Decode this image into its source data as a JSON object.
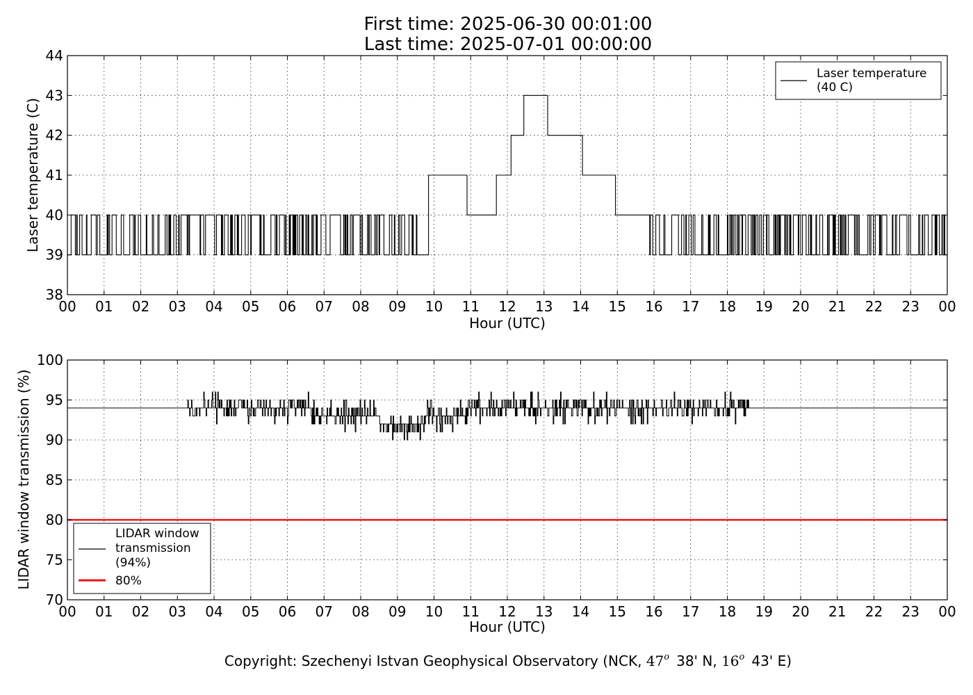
{
  "figure": {
    "title_line1": "First time: 2025-06-30 00:01:00",
    "title_line2": "Last time: 2025-07-01 00:00:00",
    "copyright": "Copyright: Szechenyi Istvan Geophysical Observatory (NCK, 47° 38' N, 16° 43' E)",
    "copyright_prefix": "Copyright: Szechenyi Istvan Geophysical Observatory (NCK, ",
    "copyright_lat_deg": "47",
    "copyright_lat_min": "38' N, ",
    "copyright_lon_deg": "16",
    "copyright_lon_min": "43' E)",
    "copyright_degree": "o"
  },
  "chart_data": [
    {
      "type": "line",
      "xlabel": "Hour (UTC)",
      "ylabel": "Laser temperature (C)",
      "xlim": [
        0,
        24
      ],
      "ylim": [
        38,
        44
      ],
      "x_ticks": [
        "00",
        "01",
        "02",
        "03",
        "04",
        "05",
        "06",
        "07",
        "08",
        "09",
        "10",
        "11",
        "12",
        "13",
        "14",
        "15",
        "16",
        "17",
        "18",
        "19",
        "20",
        "21",
        "22",
        "23",
        "00"
      ],
      "y_ticks": [
        "38",
        "39",
        "40",
        "41",
        "42",
        "43",
        "44"
      ],
      "grid": true,
      "legend_position": "top-right",
      "series": [
        {
          "name": "Laser temperature\n(40 C)",
          "name_line1": "Laser temperature",
          "name_line2": "(40 C)",
          "color": "#000000",
          "x_unit": "hour",
          "x": [
            0,
            0.9,
            0.9,
            9.85,
            9.85,
            10.9,
            10.9,
            11.7,
            11.7,
            12.1,
            12.1,
            12.45,
            12.45,
            13.1,
            13.1,
            14.05,
            14.05,
            14.95,
            14.95,
            15.85,
            15.85,
            24
          ],
          "y": [
            39.5,
            39.5,
            39,
            40,
            41,
            41,
            40,
            40,
            41,
            41,
            42,
            42,
            43,
            43,
            42,
            42,
            41,
            41,
            40,
            40,
            39,
            39.5
          ],
          "oscillation_between": [
            39,
            40
          ],
          "oscillation_windows_hours": [
            [
              0,
              0.9
            ],
            [
              1.0,
              9.6
            ],
            [
              15.85,
              24
            ]
          ]
        }
      ]
    },
    {
      "type": "line",
      "xlabel": "Hour (UTC)",
      "ylabel": "LIDAR window transmission (%)",
      "xlim": [
        0,
        24
      ],
      "ylim": [
        70,
        100
      ],
      "x_ticks": [
        "00",
        "01",
        "02",
        "03",
        "04",
        "05",
        "06",
        "07",
        "08",
        "09",
        "10",
        "11",
        "12",
        "13",
        "14",
        "15",
        "16",
        "17",
        "18",
        "19",
        "20",
        "21",
        "22",
        "23",
        "00"
      ],
      "y_ticks": [
        "70",
        "75",
        "80",
        "85",
        "90",
        "95",
        "100"
      ],
      "grid": true,
      "legend_position": "bottom-left",
      "series": [
        {
          "name": "LIDAR window\ntransmission\n(94%)",
          "name_line1": "LIDAR window",
          "name_line2": "transmission",
          "name_line3": "(94%)",
          "color": "#000000",
          "x": [
            0,
            3.2,
            4,
            5,
            6,
            7,
            8,
            9,
            10,
            11,
            12,
            13,
            14,
            15,
            16,
            17,
            18,
            18.6,
            24
          ],
          "y": [
            94,
            94,
            93.8,
            94.2,
            93.8,
            93.3,
            92.8,
            92.2,
            92.6,
            93.6,
            94.2,
            94.3,
            94.3,
            94.3,
            94.1,
            94.2,
            94.2,
            94,
            94
          ]
        },
        {
          "name": "80%",
          "color": "#e8141b",
          "x": [
            0,
            24
          ],
          "y": [
            80,
            80
          ]
        }
      ]
    }
  ]
}
